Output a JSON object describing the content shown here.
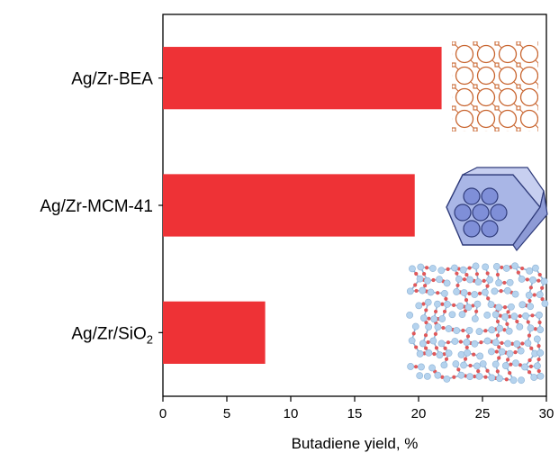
{
  "chart_data": {
    "type": "bar",
    "orientation": "horizontal",
    "categories": [
      "Ag/Zr-BEA",
      "Ag/Zr-MCM-41",
      "Ag/Zr/SiO2"
    ],
    "category_labels": [
      {
        "main": "Ag/Zr-BEA",
        "sub": ""
      },
      {
        "main": "Ag/Zr-MCM-41",
        "sub": ""
      },
      {
        "main": "Ag/Zr/SiO",
        "sub": "2"
      }
    ],
    "values": [
      21.8,
      19.7,
      8.0
    ],
    "xlabel": "Butadiene yield, %",
    "ylabel": "",
    "xlim": [
      0,
      30
    ],
    "xticks": [
      "0",
      "5",
      "10",
      "15",
      "20",
      "25",
      "30"
    ],
    "grid": false,
    "bar_color": "#ee3236",
    "structure_icons": [
      "zeolite-bea-framework-icon",
      "mcm41-hexagonal-pores-icon",
      "amorphous-silica-network-icon"
    ]
  }
}
